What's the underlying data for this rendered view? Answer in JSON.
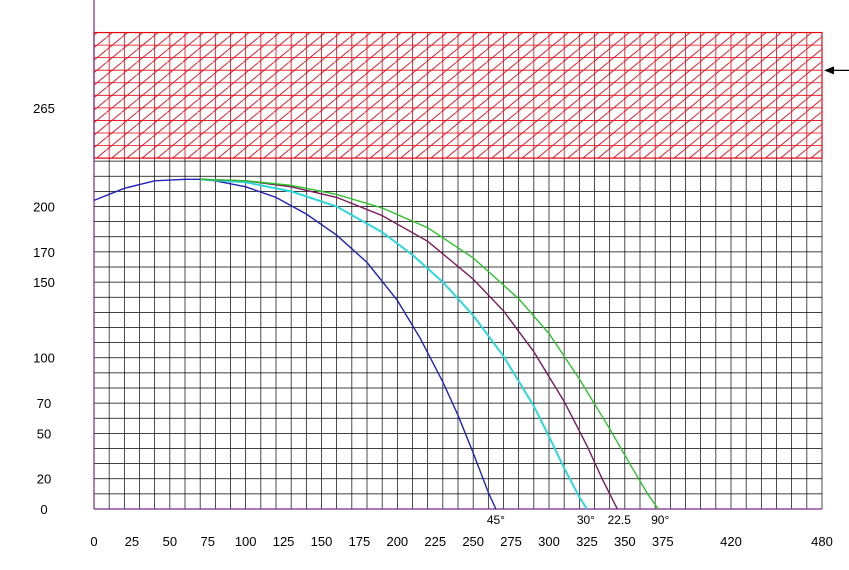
{
  "chart_data": {
    "type": "line",
    "title": "",
    "xlabel": "",
    "ylabel": "",
    "xlim": [
      0,
      480
    ],
    "ylim": [
      0,
      318
    ],
    "x_ticks": [
      0,
      25,
      50,
      75,
      100,
      125,
      150,
      175,
      200,
      225,
      250,
      275,
      300,
      325,
      350,
      375,
      420,
      480
    ],
    "y_ticks": [
      0,
      20,
      50,
      70,
      100,
      150,
      170,
      200,
      265
    ],
    "grid": true,
    "grid_step_x": 10,
    "grid_step_y": 10,
    "hatched_band": {
      "y_from": 232,
      "y_to": 315,
      "color": "#e8000f"
    },
    "arrow": {
      "y": 290
    },
    "series": [
      {
        "name": "",
        "angle_label": "45°",
        "color": "#2222b8",
        "x": [
          0,
          20,
          40,
          60,
          70,
          80,
          100,
          120,
          140,
          160,
          180,
          200,
          215,
          230,
          240,
          250,
          255,
          260,
          265
        ],
        "y": [
          204,
          212,
          217,
          218,
          218,
          217,
          213,
          206,
          195,
          181,
          163,
          138,
          113,
          84,
          62,
          37,
          24,
          11,
          0
        ]
      },
      {
        "name": "",
        "angle_label": "30°",
        "color": "#2ed8dc",
        "x": [
          70,
          100,
          130,
          160,
          190,
          210,
          230,
          250,
          270,
          290,
          300,
          310,
          320,
          325
        ],
        "y": [
          218,
          216,
          210,
          200,
          183,
          168,
          150,
          128,
          101,
          68,
          48,
          27,
          8,
          0
        ]
      },
      {
        "name": "",
        "angle_label": "22.5",
        "color": "#7a1a5a",
        "x": [
          70,
          100,
          130,
          160,
          190,
          220,
          250,
          270,
          290,
          310,
          325,
          335,
          345
        ],
        "y": [
          218,
          217,
          213,
          206,
          194,
          177,
          152,
          131,
          104,
          71,
          42,
          20,
          0
        ]
      },
      {
        "name": "",
        "angle_label": "90°",
        "color": "#2cc22c",
        "x": [
          70,
          100,
          130,
          160,
          190,
          220,
          250,
          280,
          300,
          320,
          340,
          355,
          365,
          372
        ],
        "y": [
          218,
          217,
          214,
          208,
          199,
          186,
          166,
          139,
          116,
          86,
          53,
          27,
          10,
          0
        ]
      }
    ]
  }
}
